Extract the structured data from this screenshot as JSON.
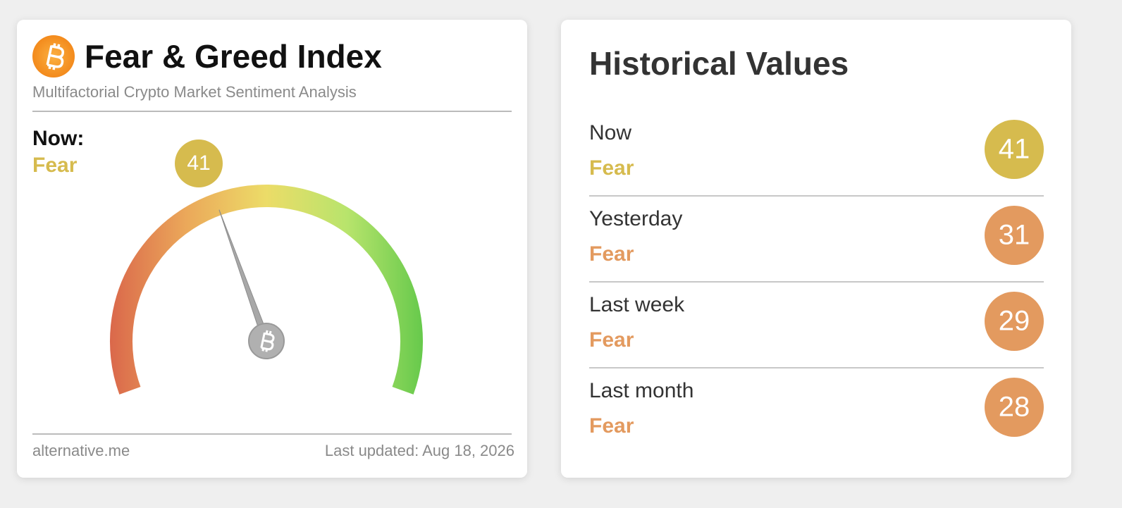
{
  "gauge_card": {
    "title": "Fear & Greed Index",
    "subtitle": "Multifactorial Crypto Market Sentiment Analysis",
    "now_label": "Now:",
    "classification": "Fear",
    "value": 41,
    "color": "#d6bb4e",
    "source": "alternative.me",
    "last_updated": "Last updated: Aug 18, 2026"
  },
  "history_card": {
    "title": "Historical Values",
    "rows": [
      {
        "label": "Now",
        "classification": "Fear",
        "value": 41,
        "color": "#d6bb4e"
      },
      {
        "label": "Yesterday",
        "classification": "Fear",
        "value": 31,
        "color": "#e39a5f"
      },
      {
        "label": "Last week",
        "classification": "Fear",
        "value": 29,
        "color": "#e39a5f"
      },
      {
        "label": "Last month",
        "classification": "Fear",
        "value": 28,
        "color": "#e39a5f"
      }
    ]
  }
}
